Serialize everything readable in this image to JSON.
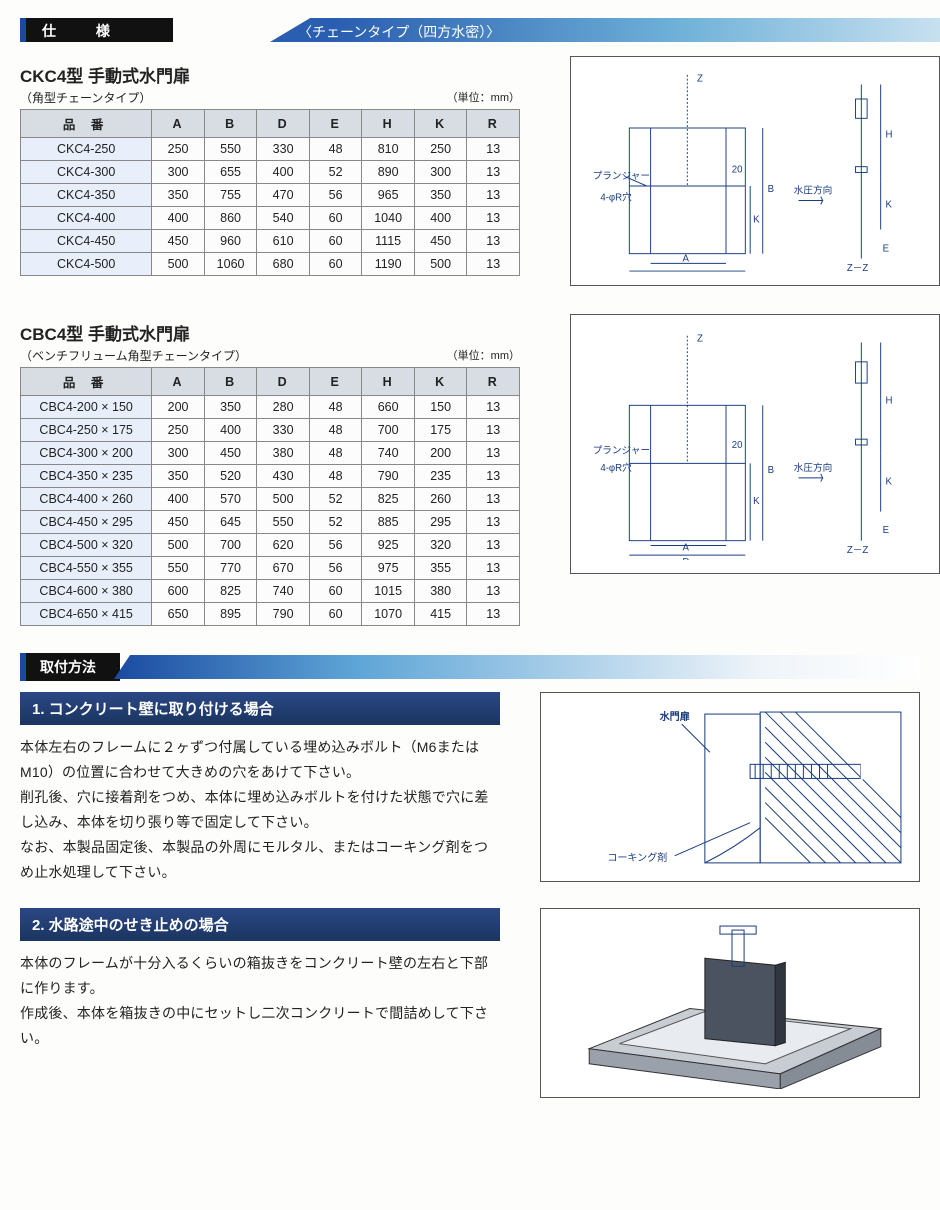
{
  "header": {
    "section_label": "仕 様",
    "banner_text": "〈チェーンタイプ（四方水密）〉"
  },
  "table1": {
    "title": "CKC4型 手動式水門扉",
    "subtitle": "（角型チェーンタイプ）",
    "unit": "（単位：mm）",
    "columns": [
      "品 番",
      "A",
      "B",
      "D",
      "E",
      "H",
      "K",
      "R"
    ],
    "rows": [
      [
        "CKC4-250",
        "250",
        "550",
        "330",
        "48",
        "810",
        "250",
        "13"
      ],
      [
        "CKC4-300",
        "300",
        "655",
        "400",
        "52",
        "890",
        "300",
        "13"
      ],
      [
        "CKC4-350",
        "350",
        "755",
        "470",
        "56",
        "965",
        "350",
        "13"
      ],
      [
        "CKC4-400",
        "400",
        "860",
        "540",
        "60",
        "1040",
        "400",
        "13"
      ],
      [
        "CKC4-450",
        "450",
        "960",
        "610",
        "60",
        "1115",
        "450",
        "13"
      ],
      [
        "CKC4-500",
        "500",
        "1060",
        "680",
        "60",
        "1190",
        "500",
        "13"
      ]
    ]
  },
  "table2": {
    "title": "CBC4型 手動式水門扉",
    "subtitle": "（ベンチフリューム角型チェーンタイプ）",
    "unit": "（単位：mm）",
    "columns": [
      "品 番",
      "A",
      "B",
      "D",
      "E",
      "H",
      "K",
      "R"
    ],
    "rows": [
      [
        "CBC4-200 × 150",
        "200",
        "350",
        "280",
        "48",
        "660",
        "150",
        "13"
      ],
      [
        "CBC4-250 × 175",
        "250",
        "400",
        "330",
        "48",
        "700",
        "175",
        "13"
      ],
      [
        "CBC4-300 × 200",
        "300",
        "450",
        "380",
        "48",
        "740",
        "200",
        "13"
      ],
      [
        "CBC4-350 × 235",
        "350",
        "520",
        "430",
        "48",
        "790",
        "235",
        "13"
      ],
      [
        "CBC4-400 × 260",
        "400",
        "570",
        "500",
        "52",
        "825",
        "260",
        "13"
      ],
      [
        "CBC4-450 × 295",
        "450",
        "645",
        "550",
        "52",
        "885",
        "295",
        "13"
      ],
      [
        "CBC4-500 × 320",
        "500",
        "700",
        "620",
        "56",
        "925",
        "320",
        "13"
      ],
      [
        "CBC4-550 × 355",
        "550",
        "770",
        "670",
        "56",
        "975",
        "355",
        "13"
      ],
      [
        "CBC4-600 × 380",
        "600",
        "825",
        "740",
        "60",
        "1015",
        "380",
        "13"
      ],
      [
        "CBC4-650 × 415",
        "650",
        "895",
        "790",
        "60",
        "1070",
        "415",
        "13"
      ]
    ]
  },
  "diagram": {
    "labels": [
      "Z",
      "プランジャー",
      "4-φR穴",
      "20",
      "A",
      "D",
      "Z",
      "K",
      "B",
      "H",
      "K",
      "E",
      "Z－Z",
      "水圧方向"
    ]
  },
  "install_header": "取付方法",
  "install1": {
    "heading": "1.  コンクリート壁に取り付ける場合",
    "body": "本体左右のフレームに２ヶずつ付属している埋め込みボルト（M6またはM10）の位置に合わせて大きめの穴をあけて下さい。\n削孔後、穴に接着剤をつめ、本体に埋め込みボルトを付けた状態で穴に差し込み、本体を切り張り等で固定して下さい。\nなお、本製品固定後、本製品の外周にモルタル、またはコーキング剤をつめ止水処理して下さい。",
    "diagram_labels": [
      "水門扉",
      "コーキング剤"
    ]
  },
  "install2": {
    "heading": "2.  水路途中のせき止めの場合",
    "body": "本体のフレームが十分入るくらいの箱抜きをコンクリート壁の左右と下部に作ります。\n作成後、本体を箱抜きの中にセットし二次コンクリートで間詰めして下さい。"
  },
  "colors": {
    "accent_blue": "#1a4aa0",
    "table_header_bg": "#d7dde3",
    "table_firstcol_bg": "#e8effa",
    "inst_heading_grad_top": "#2b4885",
    "inst_heading_grad_bot": "#1a3560",
    "diagram_stroke": "#1a3d80"
  }
}
